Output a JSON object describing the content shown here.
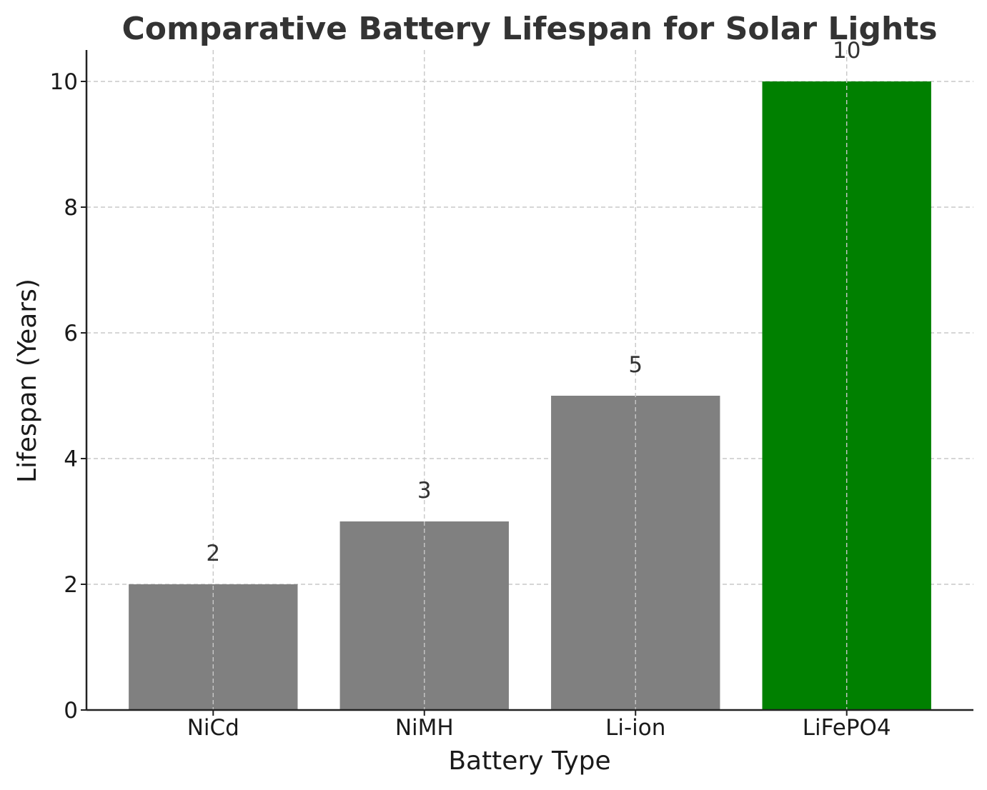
{
  "chart_data": {
    "type": "bar",
    "title": "Comparative Battery Lifespan for Solar Lights",
    "xlabel": "Battery Type",
    "ylabel": "Lifespan (Years)",
    "categories": [
      "NiCd",
      "NiMH",
      "Li-ion",
      "LiFePO4"
    ],
    "values": [
      2,
      3,
      5,
      10
    ],
    "data_labels": [
      "2",
      "3",
      "5",
      "10"
    ],
    "colors": [
      "#808080",
      "#808080",
      "#808080",
      "#008000"
    ],
    "ylim": [
      0,
      10.5
    ],
    "yticks": [
      0,
      2,
      4,
      6,
      8,
      10
    ],
    "grid": true,
    "legend": "none"
  }
}
